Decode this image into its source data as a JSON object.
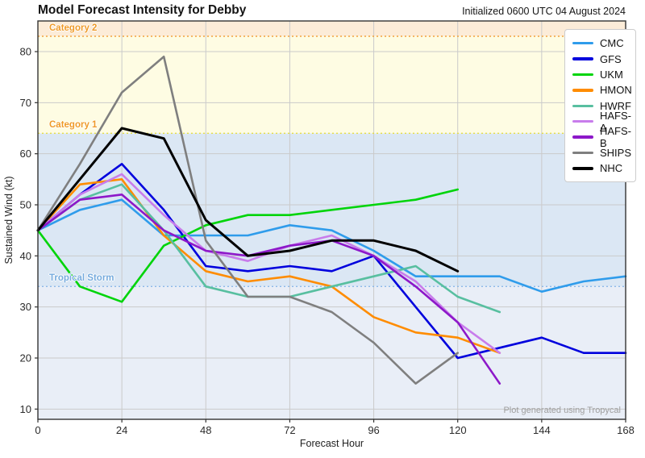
{
  "header": {
    "initialized": "Initialized 0600 UTC 04 August 2024"
  },
  "watermark": {
    "text": "Plot generated using Tropycal"
  },
  "chart_data": {
    "type": "line",
    "title": "Model Forecast Intensity for Debby",
    "xlabel": "Forecast Hour",
    "ylabel": "Sustained Wind (kt)",
    "x_range": [
      0,
      168
    ],
    "y_range": [
      8,
      86
    ],
    "x_ticks": [
      0,
      24,
      48,
      72,
      96,
      120,
      144,
      168
    ],
    "y_ticks": [
      10,
      20,
      30,
      40,
      50,
      60,
      70,
      80
    ],
    "grid": true,
    "legend_position": "upper right",
    "bands": [
      {
        "name": "category-2-zone",
        "from": 83,
        "to": 86,
        "color": "#fcecd8"
      },
      {
        "name": "category-1-zone",
        "from": 64,
        "to": 83,
        "color": "#fefce3"
      },
      {
        "name": "tropical-storm-zone",
        "from": 34,
        "to": 64,
        "color": "#dbe7f4"
      },
      {
        "name": "below-storm-zone",
        "from": 8,
        "to": 34,
        "color": "#e9eef7"
      }
    ],
    "thresholds": [
      {
        "label": "Category 2",
        "value": 83,
        "line_color": "#f2a23d",
        "label_color": "#ef9b28",
        "dash": "2,3"
      },
      {
        "label": "Category 1",
        "value": 64,
        "line_color": "#e4dd4a",
        "label_color": "#ef9b28",
        "dash": "2,3"
      },
      {
        "label": "Tropical Storm",
        "value": 34,
        "line_color": "#8cb8e8",
        "label_color": "#76abdd",
        "dash": "2,3"
      }
    ],
    "series": [
      {
        "name": "CMC",
        "color": "#2f9ceb",
        "width": 2.6,
        "points": [
          [
            0,
            45
          ],
          [
            12,
            49
          ],
          [
            24,
            51
          ],
          [
            36,
            44
          ],
          [
            48,
            44
          ],
          [
            60,
            44
          ],
          [
            72,
            46
          ],
          [
            84,
            45
          ],
          [
            96,
            41
          ],
          [
            108,
            36
          ],
          [
            120,
            36
          ],
          [
            132,
            36
          ],
          [
            144,
            33
          ],
          [
            156,
            35
          ],
          [
            168,
            36
          ]
        ]
      },
      {
        "name": "GFS",
        "color": "#0000dd",
        "width": 2.6,
        "points": [
          [
            0,
            45
          ],
          [
            12,
            52
          ],
          [
            24,
            58
          ],
          [
            36,
            49
          ],
          [
            48,
            38
          ],
          [
            60,
            37
          ],
          [
            72,
            38
          ],
          [
            84,
            37
          ],
          [
            96,
            40
          ],
          [
            108,
            30
          ],
          [
            120,
            20
          ],
          [
            132,
            22
          ],
          [
            144,
            24
          ],
          [
            156,
            21
          ],
          [
            168,
            21
          ]
        ]
      },
      {
        "name": "UKM",
        "color": "#00d40a",
        "width": 2.6,
        "points": [
          [
            0,
            45
          ],
          [
            12,
            34
          ],
          [
            24,
            31
          ],
          [
            36,
            42
          ],
          [
            48,
            46
          ],
          [
            60,
            48
          ],
          [
            72,
            48
          ],
          [
            84,
            49
          ],
          [
            96,
            50
          ],
          [
            108,
            51
          ],
          [
            120,
            53
          ]
        ]
      },
      {
        "name": "HMON",
        "color": "#ff8c00",
        "width": 2.6,
        "points": [
          [
            0,
            45
          ],
          [
            12,
            54
          ],
          [
            24,
            55
          ],
          [
            36,
            44
          ],
          [
            48,
            37
          ],
          [
            60,
            35
          ],
          [
            72,
            36
          ],
          [
            84,
            34
          ],
          [
            96,
            28
          ],
          [
            108,
            25
          ],
          [
            120,
            24
          ],
          [
            132,
            21
          ]
        ]
      },
      {
        "name": "HWRF",
        "color": "#58bfa0",
        "width": 2.6,
        "points": [
          [
            0,
            45
          ],
          [
            12,
            51
          ],
          [
            24,
            54
          ],
          [
            36,
            45
          ],
          [
            48,
            34
          ],
          [
            60,
            32
          ],
          [
            72,
            32
          ],
          [
            84,
            34
          ],
          [
            96,
            36
          ],
          [
            108,
            38
          ],
          [
            120,
            32
          ],
          [
            132,
            29
          ]
        ]
      },
      {
        "name": "HAFS-A",
        "color": "#c87ceb",
        "width": 2.6,
        "points": [
          [
            0,
            45
          ],
          [
            12,
            52
          ],
          [
            24,
            56
          ],
          [
            36,
            48
          ],
          [
            48,
            41
          ],
          [
            60,
            39
          ],
          [
            72,
            42
          ],
          [
            84,
            44
          ],
          [
            96,
            40
          ],
          [
            108,
            35
          ],
          [
            120,
            27
          ],
          [
            132,
            21
          ]
        ]
      },
      {
        "name": "HAFS-B",
        "color": "#8d18c9",
        "width": 2.6,
        "points": [
          [
            0,
            45
          ],
          [
            12,
            51
          ],
          [
            24,
            52
          ],
          [
            36,
            45
          ],
          [
            48,
            41
          ],
          [
            60,
            40
          ],
          [
            72,
            42
          ],
          [
            84,
            43
          ],
          [
            96,
            40
          ],
          [
            108,
            34
          ],
          [
            120,
            27
          ],
          [
            132,
            15
          ]
        ]
      },
      {
        "name": "SHIPS",
        "color": "#7f7f7f",
        "width": 2.6,
        "points": [
          [
            0,
            45
          ],
          [
            12,
            58
          ],
          [
            24,
            72
          ],
          [
            36,
            79
          ],
          [
            48,
            43
          ],
          [
            60,
            32
          ],
          [
            72,
            32
          ],
          [
            84,
            29
          ],
          [
            96,
            23
          ],
          [
            108,
            15
          ],
          [
            120,
            21
          ]
        ]
      },
      {
        "name": "NHC",
        "color": "#000000",
        "width": 3,
        "points": [
          [
            0,
            45
          ],
          [
            12,
            55
          ],
          [
            24,
            65
          ],
          [
            36,
            63
          ],
          [
            48,
            47
          ],
          [
            60,
            40
          ],
          [
            72,
            41
          ],
          [
            84,
            43
          ],
          [
            96,
            43
          ],
          [
            108,
            41
          ],
          [
            120,
            37
          ]
        ]
      }
    ]
  }
}
